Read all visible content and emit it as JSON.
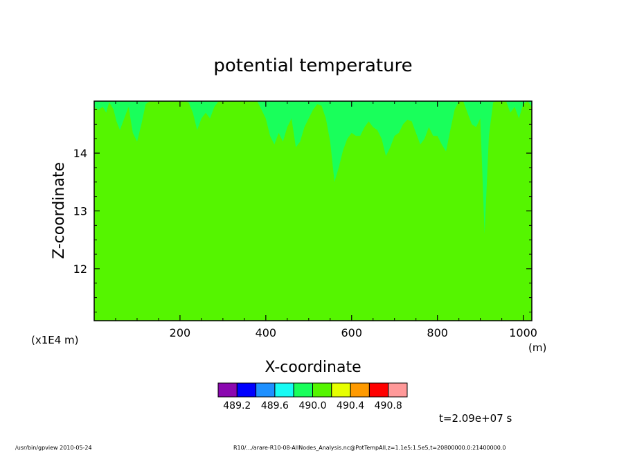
{
  "chart_data": {
    "type": "heatmap",
    "title": "potential temperature",
    "xlabel": "X-coordinate",
    "ylabel": "Z-coordinate",
    "x_units": "(m)",
    "y_units": "(x1E4 m)",
    "xlim": [
      0,
      1020
    ],
    "ylim": [
      11.1,
      14.9
    ],
    "x_ticks": [
      200,
      400,
      600,
      800,
      1000
    ],
    "y_ticks": [
      12,
      13,
      14
    ],
    "background_field": "490.0-490.2",
    "levels": [
      489.0,
      489.2,
      489.4,
      489.6,
      489.8,
      490.0,
      490.2,
      490.4,
      490.6,
      490.8,
      491.0
    ],
    "level_colors": [
      "#8b08b0",
      "#0000ff",
      "#1e90ff",
      "#17fbf4",
      "#19ff5b",
      "#55f500",
      "#e6ff00",
      "#ff9a00",
      "#ff0000",
      "#ff9999"
    ],
    "colorbar_labels": [
      "489.2",
      "489.6",
      "490.0",
      "490.4",
      "490.8"
    ],
    "upper_region_band": "489.8-490.0",
    "upper_region_boundary": {
      "x": [
        0,
        10,
        20,
        28,
        35,
        45,
        52,
        60,
        70,
        80,
        90,
        100,
        110,
        120,
        130,
        140,
        150,
        160,
        170,
        180,
        190,
        200,
        210,
        220,
        230,
        240,
        250,
        260,
        270,
        280,
        290,
        300,
        320,
        340,
        360,
        380,
        400,
        410,
        420,
        430,
        440,
        450,
        460,
        470,
        480,
        490,
        500,
        510,
        520,
        530,
        540,
        550,
        560,
        570,
        580,
        590,
        600,
        610,
        620,
        630,
        640,
        650,
        660,
        670,
        680,
        690,
        700,
        710,
        720,
        730,
        740,
        750,
        760,
        770,
        780,
        790,
        800,
        810,
        820,
        830,
        840,
        850,
        860,
        870,
        880,
        890,
        900,
        910,
        920,
        930,
        940,
        950,
        960,
        970,
        980,
        990,
        1000,
        1010,
        1020
      ],
      "z": [
        14.8,
        14.75,
        14.8,
        14.7,
        14.88,
        14.76,
        14.55,
        14.4,
        14.6,
        14.8,
        14.35,
        14.2,
        14.5,
        14.85,
        14.9,
        14.9,
        14.9,
        14.9,
        14.9,
        14.9,
        14.9,
        14.9,
        14.9,
        14.88,
        14.7,
        14.4,
        14.6,
        14.7,
        14.6,
        14.8,
        14.9,
        14.9,
        14.9,
        14.9,
        14.9,
        14.9,
        14.6,
        14.3,
        14.15,
        14.35,
        14.2,
        14.45,
        14.6,
        14.1,
        14.2,
        14.45,
        14.6,
        14.75,
        14.85,
        14.82,
        14.6,
        14.2,
        13.5,
        13.75,
        14.05,
        14.25,
        14.35,
        14.3,
        14.3,
        14.45,
        14.55,
        14.45,
        14.4,
        14.25,
        13.95,
        14.1,
        14.3,
        14.35,
        14.5,
        14.58,
        14.55,
        14.35,
        14.15,
        14.25,
        14.45,
        14.3,
        14.3,
        14.15,
        14.03,
        14.4,
        14.75,
        14.9,
        14.9,
        14.7,
        14.5,
        14.45,
        14.6,
        12.6,
        14.3,
        14.88,
        14.9,
        14.9,
        14.9,
        14.7,
        14.8,
        14.6,
        14.85,
        14.9,
        14.8
      ]
    },
    "grid": false,
    "legend": "colorbar-bottom",
    "time_label": "t=2.09e+07 s"
  },
  "footer": {
    "left": "/usr/bin/gpview   2010-05-24",
    "right": "R10/.../arare-R10-08-AllNodes_Analysis.nc@PotTempAll,z=1.1e5:1.5e5,t=20800000.0:21400000.0"
  }
}
